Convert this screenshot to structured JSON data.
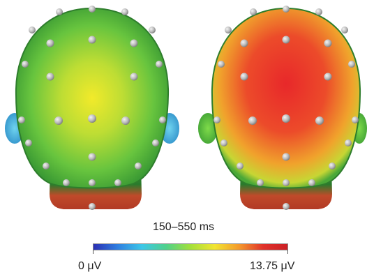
{
  "figure": {
    "time_window": "150–550 ms",
    "colorbar": {
      "min_label": "0 μV",
      "max_label": "13.75 μV",
      "stops": [
        "#2b2fb3",
        "#2f7fe0",
        "#3cc7e8",
        "#4fd18a",
        "#a3e03a",
        "#f2e531",
        "#f49a2c",
        "#e0322a",
        "#cc1f25"
      ]
    },
    "heads": [
      {
        "name": "left",
        "level": 0.45
      },
      {
        "name": "right",
        "level": 0.85
      }
    ]
  }
}
